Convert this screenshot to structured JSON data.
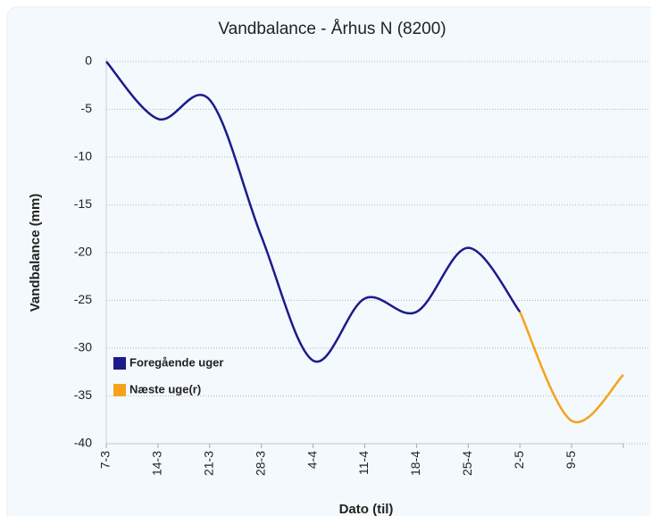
{
  "chart_data": {
    "type": "line",
    "title": "Vandbalance - Århus N (8200)",
    "y_label": "Vandbalance (mm)",
    "x_label": "Dato (til)",
    "categories": [
      "7-3",
      "14-3",
      "21-3",
      "28-3",
      "4-4",
      "11-4",
      "18-4",
      "25-4",
      "2-5",
      "9-5",
      null
    ],
    "series": [
      {
        "name": "Foregående uger",
        "color": "#1b1b8a",
        "values": [
          0,
          -6,
          -4,
          -18.3,
          -31.3,
          -24.8,
          -26.2,
          -19.5,
          -26.2,
          null,
          null
        ]
      },
      {
        "name": "Næste uge(r)",
        "color": "#f5a31c",
        "values": [
          null,
          null,
          null,
          null,
          null,
          null,
          null,
          null,
          -26.2,
          -37.6,
          -32.8
        ]
      }
    ],
    "ylim": [
      -40,
      0
    ],
    "yticks": [
      0,
      -5,
      -10,
      -15,
      -20,
      -25,
      -30,
      -35,
      -40
    ],
    "grid": true,
    "legend": "lower left"
  }
}
